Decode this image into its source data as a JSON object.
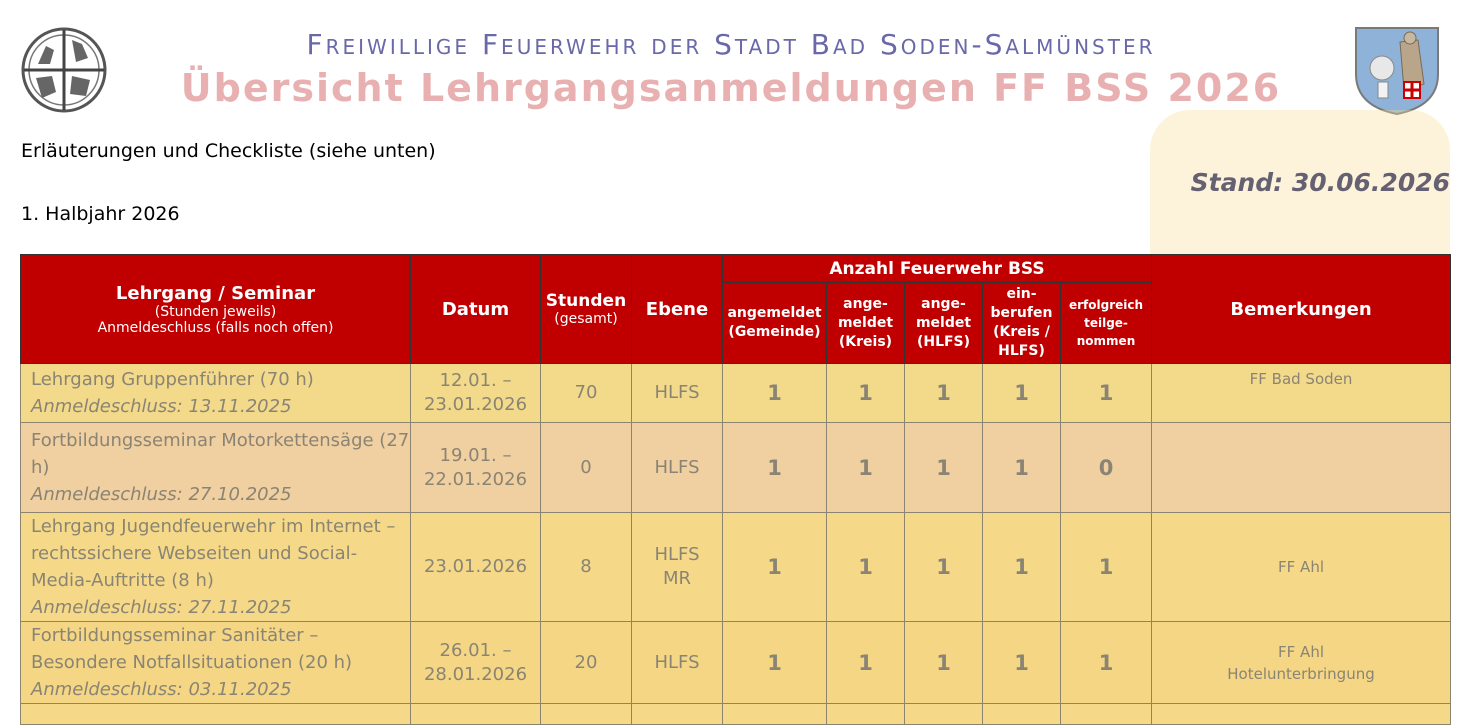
{
  "header": {
    "line1": "Freiwillige Feuerwehr der Stadt Bad Soden-Salmünster",
    "line2": "Übersicht Lehrgangsanmeldungen FF BSS 2026"
  },
  "intro_text": "Erläuterungen und Checkliste (siehe unten)",
  "stand": "Stand: 30.06.2026",
  "halbjahr": "1. Halbjahr 2026",
  "table": {
    "headers": {
      "course": "Lehrgang / Seminar",
      "course_sub1": "(Stunden jeweils)",
      "course_sub2": "Anmeldeschluss (falls noch offen)",
      "datum": "Datum",
      "stunden": "Stunden",
      "stunden_sub": "(gesamt)",
      "ebene": "Ebene",
      "anzahl_group": "Anzahl Feuerwehr BSS",
      "angemeldet_gemeinde": "angemeldet (Gemeinde)",
      "angemeldet_kreis": "ange- meldet (Kreis)",
      "angemeldet_hlfs": "ange- meldet (HLFS)",
      "einberufen": "ein- berufen (Kreis / HLFS)",
      "erfolgreich": "erfolgreich teilge- nommen",
      "bemerkungen": "Bemerkungen"
    },
    "rows": [
      {
        "course": "Lehrgang Gruppenführer (70 h)",
        "deadline": "Anmeldeschluss: 13.11.2025",
        "datum": "12.01. – 23.01.2026",
        "stunden": "70",
        "ebene": "HLFS",
        "gemeinde": "1",
        "kreis": "1",
        "hlfs": "1",
        "einberufen": "1",
        "erfolgreich": "1",
        "bemerkung": "FF Bad Soden"
      },
      {
        "course": "Fortbildungsseminar Motorkettensäge (27 h)",
        "deadline": "Anmeldeschluss: 27.10.2025",
        "datum": "19.01. – 22.01.2026",
        "stunden": "0",
        "ebene": "HLFS",
        "gemeinde": "1",
        "kreis": "1",
        "hlfs": "1",
        "einberufen": "1",
        "erfolgreich": "0",
        "bemerkung": ""
      },
      {
        "course": "Lehrgang Jugendfeuerwehr im Internet – rechtssichere Webseiten und Social-Media-Auftritte (8 h)",
        "deadline": "Anmeldeschluss: 27.11.2025",
        "datum": "23.01.2026",
        "stunden": "8",
        "ebene": "HLFS MR",
        "gemeinde": "1",
        "kreis": "1",
        "hlfs": "1",
        "einberufen": "1",
        "erfolgreich": "1",
        "bemerkung": "FF Ahl"
      },
      {
        "course": "Fortbildungsseminar Sanitäter – Besondere Notfallsituationen (20 h)",
        "deadline": "Anmeldeschluss: 03.11.2025",
        "datum": "26.01. – 28.01.2026",
        "stunden": "20",
        "ebene": "HLFS",
        "gemeinde": "1",
        "kreis": "1",
        "hlfs": "1",
        "einberufen": "1",
        "erfolgreich": "1",
        "bemerkung": "FF Ahl",
        "bemerkung2": "Hotelunterbringung"
      }
    ]
  },
  "colors": {
    "header_red": "#c00000",
    "title_blue": "#6a68a8",
    "title_pink": "#e8b0b0",
    "stand_navy": "#1a2060"
  }
}
